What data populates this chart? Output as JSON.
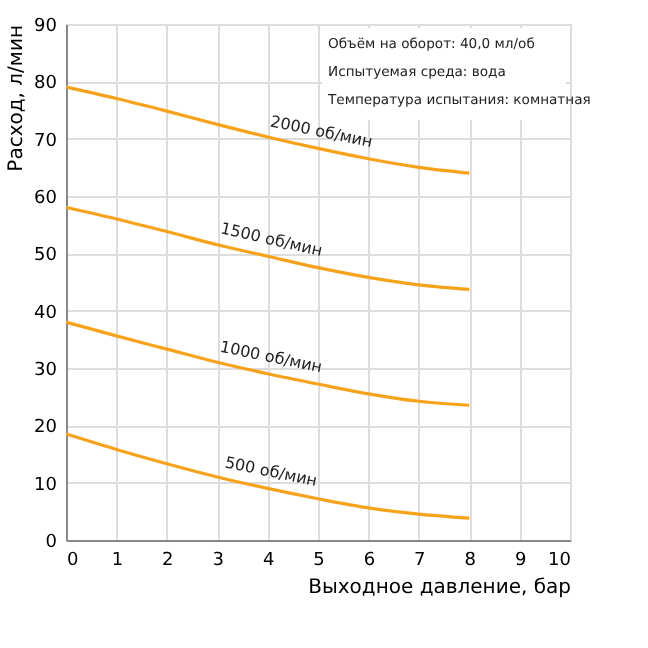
{
  "chart_data": {
    "type": "line",
    "xlabel": "Выходное давление, бар",
    "ylabel": "Расход, л/мин",
    "x": [
      0,
      1,
      2,
      3,
      4,
      5,
      6,
      7,
      8
    ],
    "series": [
      {
        "name": "2000 об/мин",
        "color": "#f7a21b",
        "values": [
          79,
          77,
          74.8,
          72.5,
          70.3,
          68.3,
          66.5,
          65,
          64
        ]
      },
      {
        "name": "1500 об/мин",
        "color": "#f7a21b",
        "values": [
          58,
          56,
          53.8,
          51.5,
          49.5,
          47.5,
          45.8,
          44.5,
          43.7
        ]
      },
      {
        "name": "1000 об/мин",
        "color": "#f7a21b",
        "values": [
          38,
          35.6,
          33.3,
          31,
          29,
          27.2,
          25.5,
          24.2,
          23.5
        ]
      },
      {
        "name": "500 об/мин",
        "color": "#f7a21b",
        "values": [
          18.5,
          15.8,
          13.3,
          11,
          9,
          7.2,
          5.6,
          4.5,
          3.8
        ]
      }
    ],
    "annotations": [
      "Объём на оборот: 40,0 мл/об",
      "Испытуемая среда: вода",
      "Температура испытания: комнатная"
    ],
    "xlim": [
      0,
      10
    ],
    "xticks": [
      0,
      1,
      2,
      3,
      4,
      5,
      6,
      7,
      8,
      9,
      10
    ],
    "ylim": [
      0,
      90
    ],
    "yticks": [
      0,
      10,
      20,
      30,
      40,
      50,
      60,
      70,
      80,
      90
    ],
    "grid": true,
    "legend": false,
    "marker": "none",
    "line_style": "solid"
  }
}
